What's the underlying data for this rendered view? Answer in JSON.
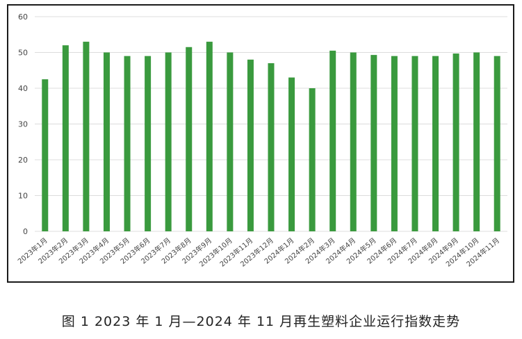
{
  "caption": "图 1  2023 年 1 月—2024 年 11 月再生塑料企业运行指数走势",
  "colors": {
    "bar": "#3a9a3e",
    "grid": "#dcdcdc",
    "axis_text": "#444444"
  },
  "chart_data": {
    "type": "bar",
    "title": "",
    "xlabel": "",
    "ylabel": "",
    "ylim": [
      0,
      60
    ],
    "yticks": [
      0,
      10,
      20,
      30,
      40,
      50,
      60
    ],
    "grid": true,
    "categories": [
      "2023年1月",
      "2023年2月",
      "2023年3月",
      "2023年4月",
      "2023年5月",
      "2023年6月",
      "2023年7月",
      "2023年8月",
      "2023年9月",
      "2023年10月",
      "2023年11月",
      "2023年12月",
      "2024年1月",
      "2024年2月",
      "2024年3月",
      "2024年4月",
      "2024年5月",
      "2024年6月",
      "2024年7月",
      "2024年8月",
      "2024年9月",
      "2024年10月",
      "2024年11月"
    ],
    "values": [
      42.5,
      52,
      53,
      50,
      49,
      49,
      50,
      51.5,
      53,
      50,
      48,
      47,
      43,
      40,
      50.5,
      50,
      49.3,
      49,
      49,
      49,
      49.7,
      50,
      49
    ]
  }
}
